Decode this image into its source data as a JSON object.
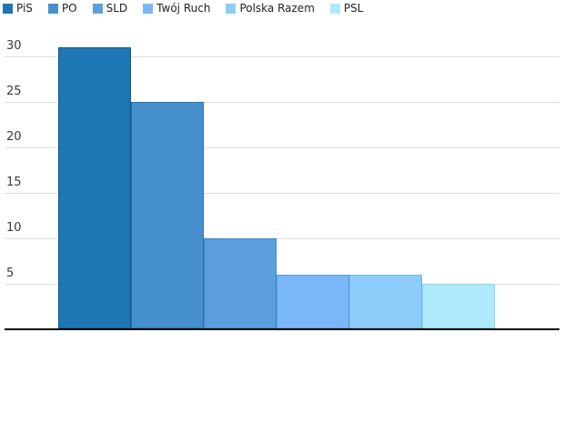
{
  "chart_data": {
    "type": "bar",
    "title": "",
    "xlabel": "",
    "ylabel": "",
    "categories": [
      "PiS",
      "PO",
      "SLD",
      "Twój Ruch",
      "Polska Razem",
      "PSL"
    ],
    "values": [
      31,
      25,
      10,
      6,
      6,
      5
    ],
    "bar_colors": [
      "#1f76b5",
      "#4690ce",
      "#5c9fdf",
      "#79b7f9",
      "#8ecdfa",
      "#aeeafb"
    ],
    "bar_border_colors": [
      "#145a8d",
      "#2d6fa7",
      "#3f83c4",
      "#5a9de0",
      "#6fb4e8",
      "#8ed5ef"
    ],
    "ylim": [
      0,
      31.5
    ],
    "yticks": [
      5,
      10,
      15,
      20,
      25,
      30
    ],
    "grid": "horizontal",
    "gridline_color": "#dddddd",
    "axis_line_color": "#000000",
    "tick_label_color": "#3a3a3a",
    "legend_position": "top-left",
    "legend": [
      {
        "label": "PiS",
        "color": "#1f76b5"
      },
      {
        "label": "PO",
        "color": "#4690ce"
      },
      {
        "label": "SLD",
        "color": "#5c9fdf"
      },
      {
        "label": "Twój Ruch",
        "color": "#79b7f9"
      },
      {
        "label": "Polska Razem",
        "color": "#8ccef8"
      },
      {
        "label": "PSL",
        "color": "#aeeafb"
      }
    ]
  }
}
